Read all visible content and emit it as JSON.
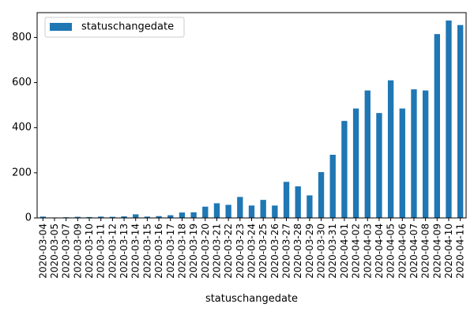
{
  "chart_data": {
    "type": "bar",
    "title": "",
    "xlabel": "statuschangedate",
    "ylabel": "",
    "ylim": [
      0,
      910
    ],
    "yticks": [
      0,
      200,
      400,
      600,
      800
    ],
    "grid": false,
    "legend_position": "top-left",
    "series": [
      {
        "name": "statuschangedate",
        "color": "#1f77b4",
        "values": [
          6,
          2,
          3,
          5,
          4,
          6,
          5,
          7,
          16,
          6,
          8,
          12,
          24,
          25,
          50,
          65,
          58,
          93,
          55,
          80,
          55,
          160,
          140,
          100,
          203,
          280,
          430,
          485,
          565,
          465,
          610,
          485,
          570,
          565,
          815,
          875,
          855
        ]
      }
    ],
    "categories": [
      "2020-03-04",
      "2020-03-05",
      "2020-03-07",
      "2020-03-09",
      "2020-03-10",
      "2020-03-11",
      "2020-03-12",
      "2020-03-13",
      "2020-03-14",
      "2020-03-15",
      "2020-03-16",
      "2020-03-17",
      "2020-03-18",
      "2020-03-19",
      "2020-03-20",
      "2020-03-21",
      "2020-03-22",
      "2020-03-23",
      "2020-03-24",
      "2020-03-25",
      "2020-03-26",
      "2020-03-27",
      "2020-03-28",
      "2020-03-29",
      "2020-03-30",
      "2020-03-31",
      "2020-04-01",
      "2020-04-02",
      "2020-04-03",
      "2020-04-04",
      "2020-04-05",
      "2020-04-06",
      "2020-04-07",
      "2020-04-08",
      "2020-04-09",
      "2020-04-10",
      "2020-04-11"
    ]
  }
}
